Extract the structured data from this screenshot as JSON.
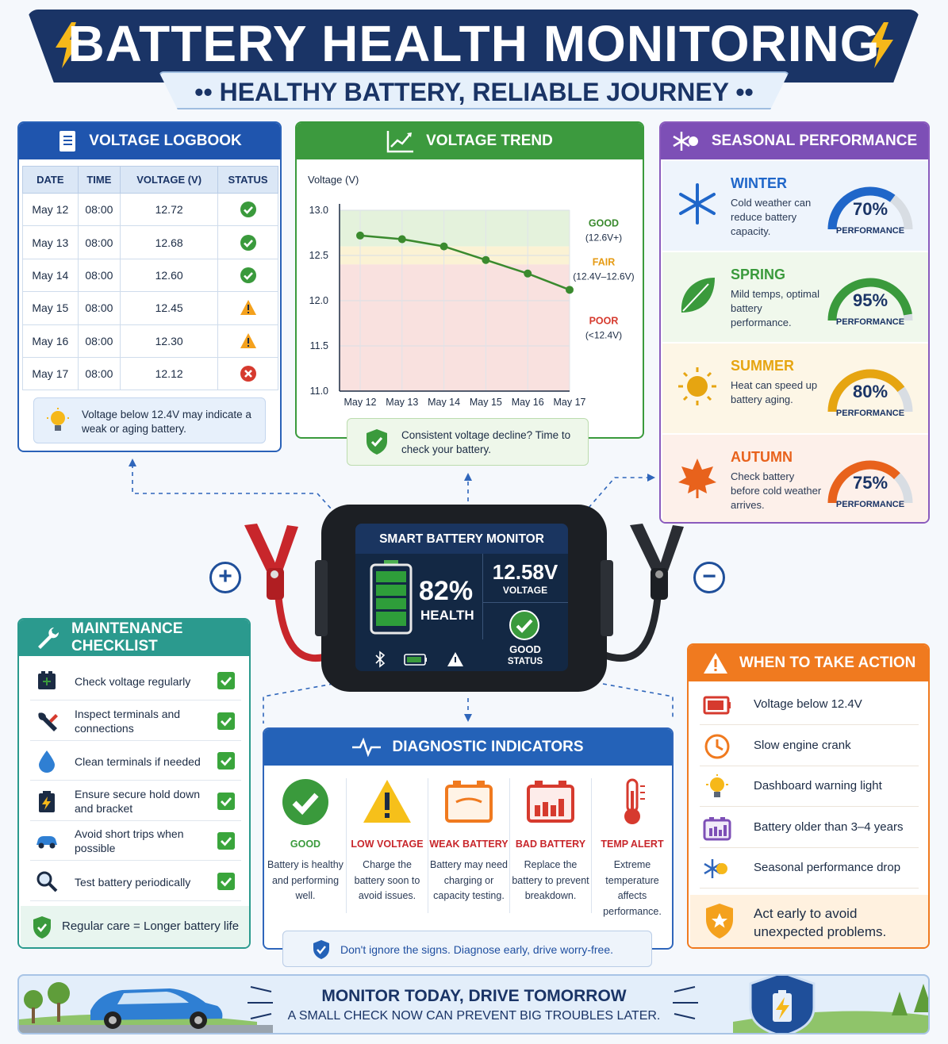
{
  "header": {
    "title": "BATTERY HEALTH MONITORING",
    "subtitle": "•• HEALTHY BATTERY, RELIABLE JOURNEY ••"
  },
  "logbook": {
    "title": "VOLTAGE LOGBOOK",
    "columns": [
      "DATE",
      "TIME",
      "VOLTAGE (V)",
      "STATUS"
    ],
    "rows": [
      {
        "date": "May 12",
        "time": "08:00",
        "voltage": "12.72",
        "status": "good"
      },
      {
        "date": "May 13",
        "time": "08:00",
        "voltage": "12.68",
        "status": "good"
      },
      {
        "date": "May 14",
        "time": "08:00",
        "voltage": "12.60",
        "status": "good"
      },
      {
        "date": "May 15",
        "time": "08:00",
        "voltage": "12.45",
        "status": "warning"
      },
      {
        "date": "May 16",
        "time": "08:00",
        "voltage": "12.30",
        "status": "warning"
      },
      {
        "date": "May 17",
        "time": "08:00",
        "voltage": "12.12",
        "status": "bad"
      }
    ],
    "tip": "Voltage below 12.4V may indicate a weak or aging battery."
  },
  "trend": {
    "title": "VOLTAGE TREND",
    "tip": "Consistent voltage decline? Time to check your battery.",
    "zones": [
      {
        "name": "GOOD",
        "range": "(12.6V+)",
        "color": "#3a8a2e",
        "fill": "#e4f2dc",
        "from": 12.6,
        "to": 13.0
      },
      {
        "name": "FAIR",
        "range": "(12.4V–12.6V)",
        "color": "#e59a12",
        "fill": "#fbf2d4",
        "from": 12.4,
        "to": 12.6
      },
      {
        "name": "POOR",
        "range": "(<12.4V)",
        "color": "#d63a2e",
        "fill": "#f9e1df",
        "from": 11.0,
        "to": 12.4
      }
    ]
  },
  "chart_data": {
    "type": "line",
    "ylabel": "Voltage (V)",
    "xlabel": "",
    "categories": [
      "May 12",
      "May 13",
      "May 14",
      "May 15",
      "May 16",
      "May 17"
    ],
    "values": [
      12.72,
      12.68,
      12.6,
      12.45,
      12.3,
      12.12
    ],
    "ylim": [
      11.0,
      13.0
    ],
    "yticks": [
      "13.0",
      "12.5",
      "12.0",
      "11.5",
      "11.0"
    ],
    "grid": true,
    "line_color": "#3a8a2e"
  },
  "seasonal": {
    "title": "SEASONAL PERFORMANCE",
    "perf_label": "PERFORMANCE",
    "seasons": [
      {
        "name": "WINTER",
        "desc": "Cold weather can reduce battery capacity.",
        "pct": "70%",
        "value": 0.7,
        "color": "#1f66c9",
        "bg": "#eef4fc",
        "icon": "snowflake-icon"
      },
      {
        "name": "SPRING",
        "desc": "Mild temps, optimal battery performance.",
        "pct": "95%",
        "value": 0.95,
        "color": "#3a9a3c",
        "bg": "#f0f8ec",
        "icon": "leaf-icon"
      },
      {
        "name": "SUMMER",
        "desc": "Heat can speed up battery aging.",
        "pct": "80%",
        "value": 0.8,
        "color": "#e6a511",
        "bg": "#fdf6e6",
        "icon": "sun-icon"
      },
      {
        "name": "AUTUMN",
        "desc": "Check battery before cold weather arrives.",
        "pct": "75%",
        "value": 0.75,
        "color": "#e8621c",
        "bg": "#fdf0ea",
        "icon": "maple-leaf-icon"
      }
    ]
  },
  "device": {
    "title": "SMART BATTERY MONITOR",
    "health_pct": "82%",
    "health_label": "HEALTH",
    "voltage": "12.58V",
    "voltage_label": "VOLTAGE",
    "status": "GOOD",
    "status_label": "STATUS",
    "plus": "+",
    "minus": "−"
  },
  "maintenance": {
    "title": "MAINTENANCE CHECKLIST",
    "items": [
      {
        "text": "Check voltage regularly",
        "icon": "battery-icon"
      },
      {
        "text": "Inspect terminals and connections",
        "icon": "wrench-icon"
      },
      {
        "text": "Clean terminals if needed",
        "icon": "water-drop-icon"
      },
      {
        "text": "Ensure secure hold down and bracket",
        "icon": "battery-bolt-icon"
      },
      {
        "text": "Avoid short trips when possible",
        "icon": "car-icon"
      },
      {
        "text": "Test battery periodically",
        "icon": "magnifier-icon"
      }
    ],
    "footer": "Regular care = Longer battery life"
  },
  "diagnostic": {
    "title": "DIAGNOSTIC INDICATORS",
    "items": [
      {
        "name": "GOOD",
        "desc": "Battery is healthy and performing well.",
        "color": "#3a9a3c",
        "icon": "check-circle-icon"
      },
      {
        "name": "LOW VOLTAGE",
        "desc": "Charge the battery soon to avoid issues.",
        "color": "#c8262b",
        "icon": "warning-icon"
      },
      {
        "name": "WEAK BATTERY",
        "desc": "Battery may need charging or capacity testing.",
        "color": "#c8262b",
        "icon": "weak-battery-icon"
      },
      {
        "name": "BAD BATTERY",
        "desc": "Replace the battery to prevent breakdown.",
        "color": "#c8262b",
        "icon": "bad-battery-icon"
      },
      {
        "name": "TEMP ALERT",
        "desc": "Extreme temperature affects performance.",
        "color": "#c8262b",
        "icon": "thermometer-icon"
      }
    ],
    "note": "Don't ignore the signs. Diagnose early, drive worry-free."
  },
  "action": {
    "title": "WHEN TO TAKE ACTION",
    "items": [
      {
        "text": "Voltage below 12.4V",
        "icon": "low-battery-icon"
      },
      {
        "text": "Slow engine crank",
        "icon": "clock-icon"
      },
      {
        "text": "Dashboard warning light",
        "icon": "bulb-icon"
      },
      {
        "text": "Battery older than 3–4 years",
        "icon": "battery-calendar-icon"
      },
      {
        "text": "Seasonal performance drop",
        "icon": "season-icon"
      }
    ],
    "footer": "Act early to avoid unexpected problems."
  },
  "footer": {
    "title": "MONITOR TODAY, DRIVE TOMORROW",
    "subtitle": "A SMALL CHECK NOW CAN PREVENT BIG TROUBLES LATER."
  }
}
